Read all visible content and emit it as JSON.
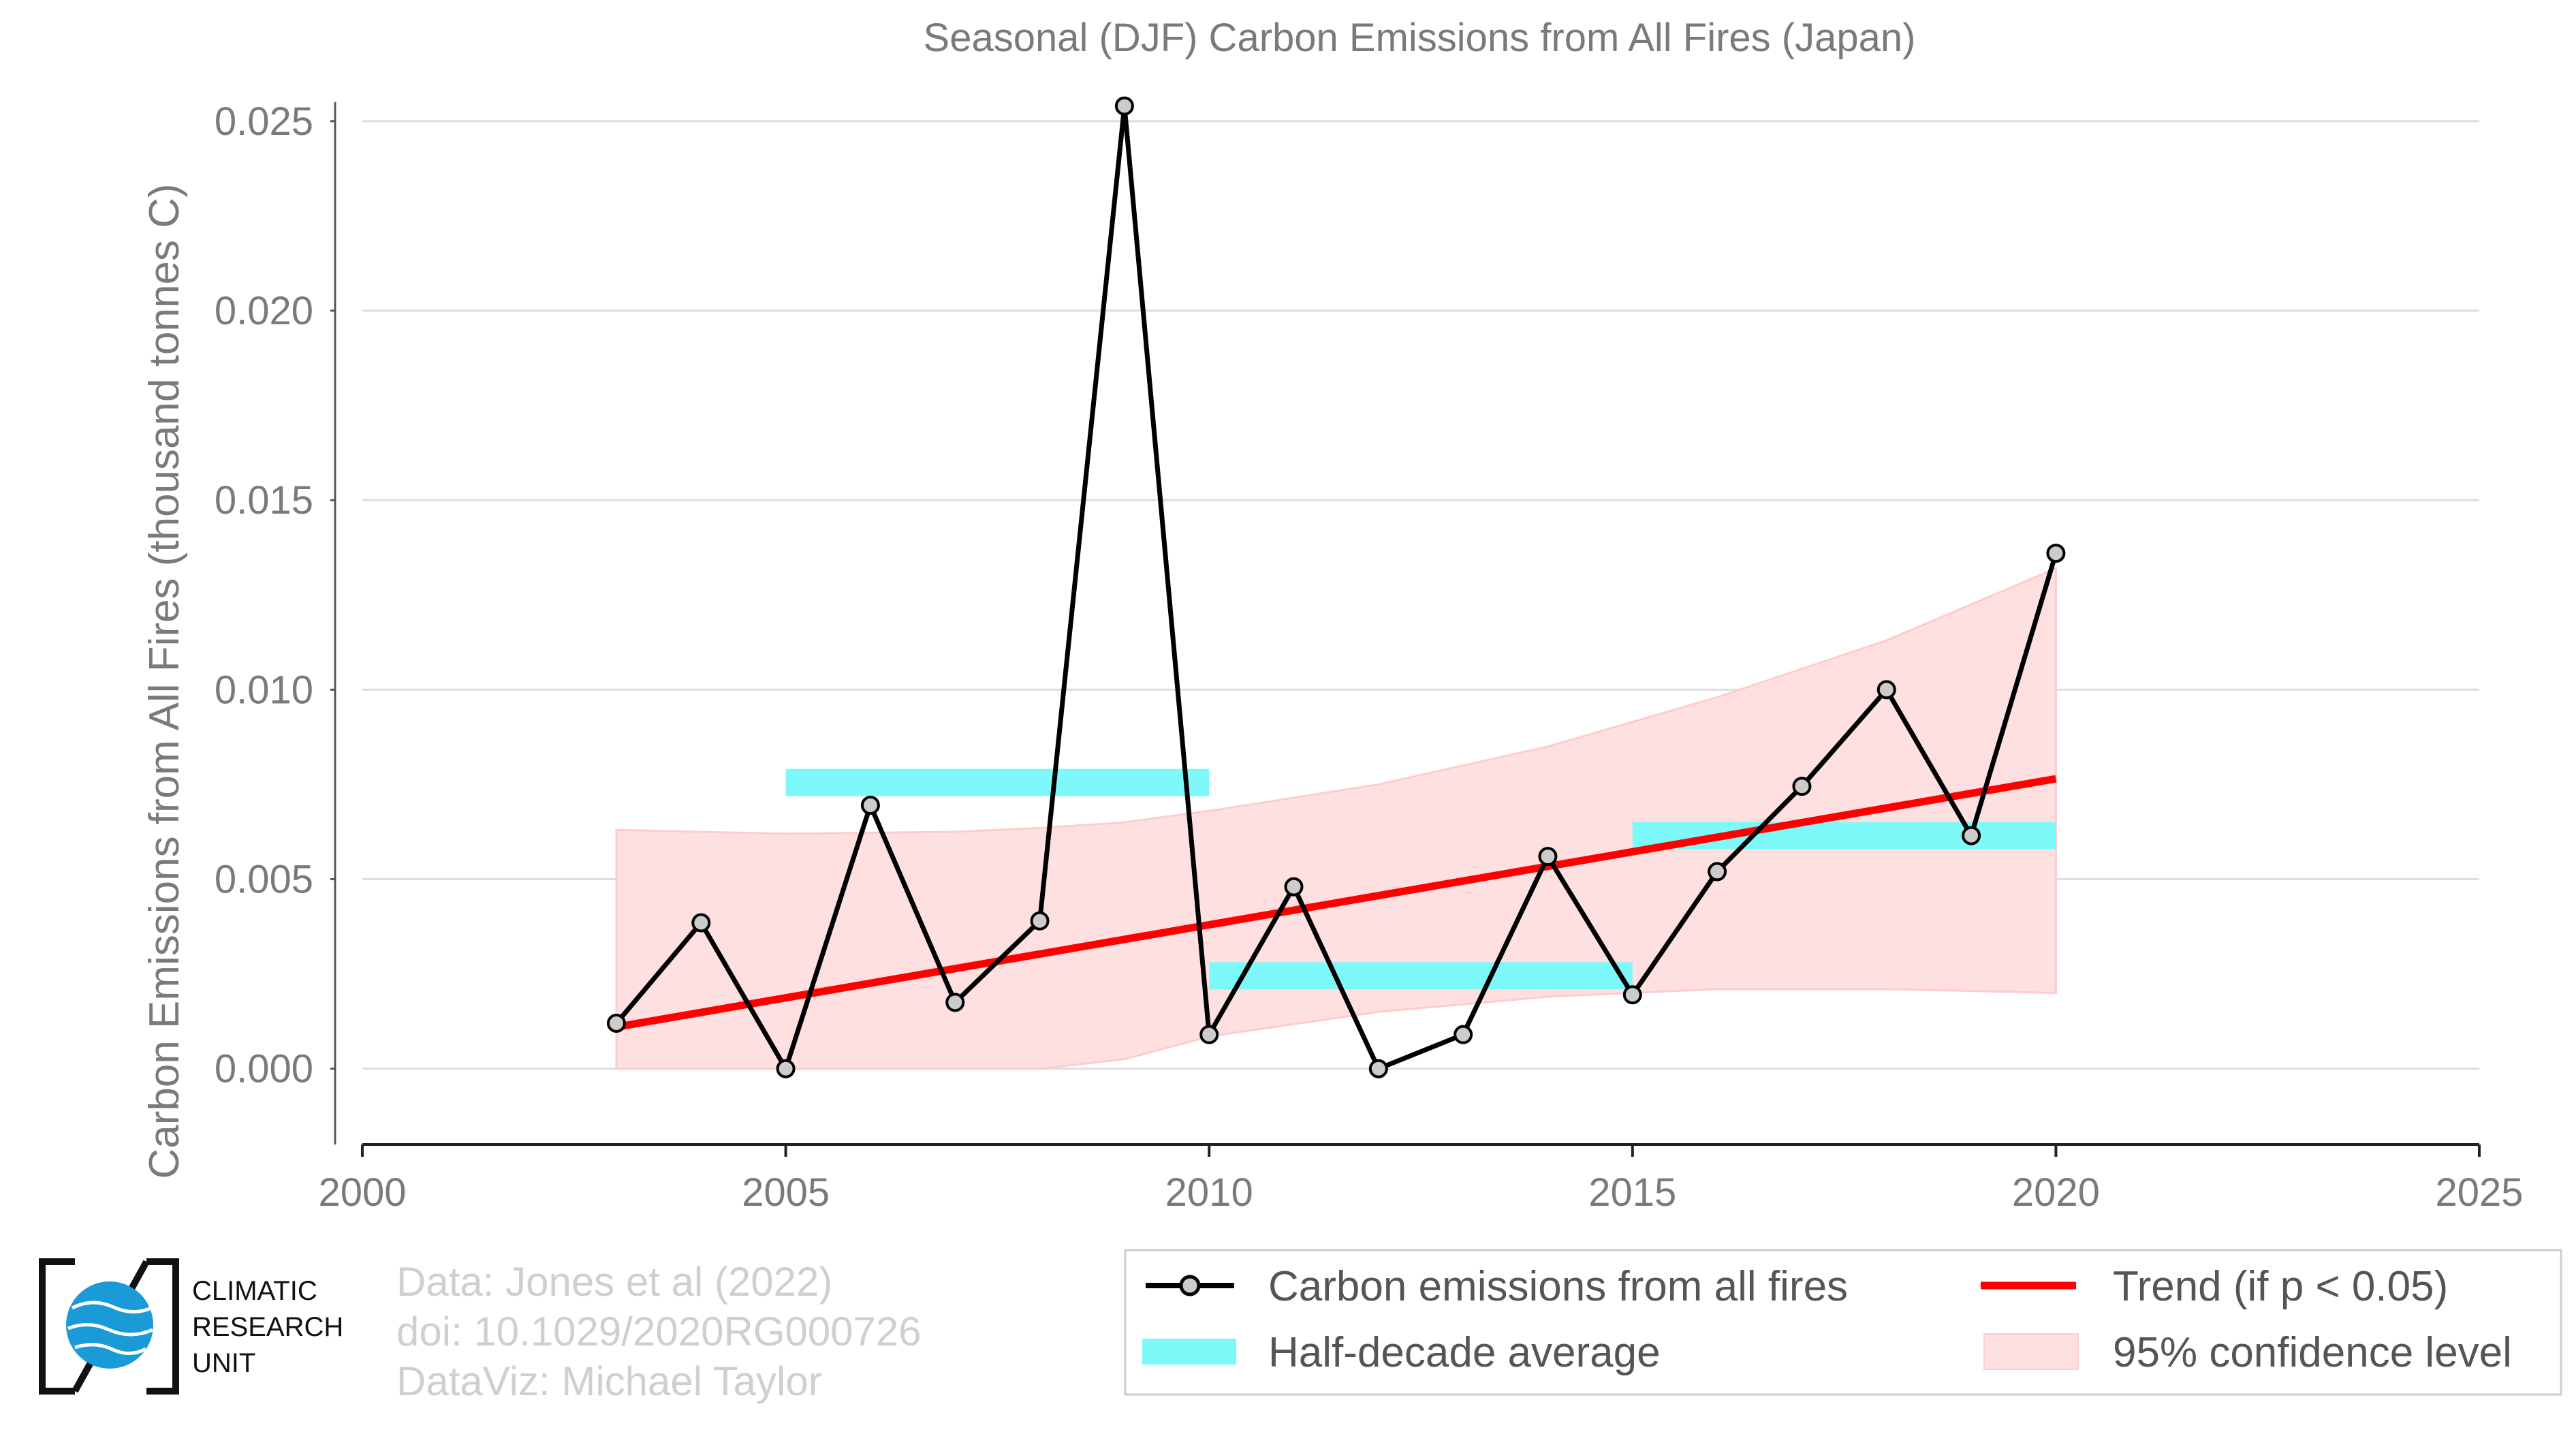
{
  "chart_data": {
    "type": "line",
    "title": "Seasonal (DJF) Carbon Emissions from All Fires (Japan)",
    "xlabel": "",
    "ylabel": "Carbon Emissions from All Fires (thousand tonnes C)",
    "xlim": [
      2000,
      2025
    ],
    "ylim": [
      -0.002,
      0.0255
    ],
    "x_ticks": [
      "2000",
      "2005",
      "2010",
      "2015",
      "2020",
      "2025"
    ],
    "y_ticks": [
      "0.000",
      "0.005",
      "0.010",
      "0.015",
      "0.020",
      "0.025"
    ],
    "grid": "horizontal",
    "series": [
      {
        "name": "Carbon emissions from all fires",
        "color": "#000000",
        "marker_fill": "#cccccc",
        "x": [
          2003,
          2004,
          2005,
          2006,
          2007,
          2008,
          2009,
          2010,
          2011,
          2012,
          2013,
          2014,
          2015,
          2016,
          2017,
          2018,
          2019,
          2020
        ],
        "y": [
          0.0012,
          0.00385,
          0.0,
          0.00695,
          0.00175,
          0.0039,
          0.0254,
          0.0009,
          0.0048,
          0.0,
          0.0009,
          0.0056,
          0.00195,
          0.0052,
          0.00745,
          0.01,
          0.00615,
          0.0136
        ]
      },
      {
        "name": "Half-decade average",
        "color": "#7ef9f9",
        "segments": [
          {
            "x_start": 2005,
            "x_end": 2010,
            "y": 0.00755
          },
          {
            "x_start": 2010,
            "x_end": 2015,
            "y": 0.00245
          },
          {
            "x_start": 2015,
            "x_end": 2020,
            "y": 0.00615
          }
        ]
      },
      {
        "name": "Trend (if p < 0.05)",
        "color": "#ff0000",
        "x": [
          2003,
          2020
        ],
        "y": [
          0.0011,
          0.00765
        ]
      },
      {
        "name": "95% confidence level",
        "color": "#ffcccc",
        "x": [
          2003,
          2005,
          2007,
          2008,
          2009,
          2010,
          2012,
          2014,
          2016,
          2018,
          2020
        ],
        "upper": [
          0.0063,
          0.0062,
          0.00625,
          0.00635,
          0.0065,
          0.0068,
          0.0075,
          0.0085,
          0.0098,
          0.0113,
          0.0132
        ],
        "lower": [
          0.0,
          0.0,
          0.0,
          0.0,
          0.00025,
          0.00085,
          0.0015,
          0.0019,
          0.0021,
          0.0021,
          0.002
        ]
      }
    ],
    "legend": {
      "placement": "bottom-right",
      "items": [
        {
          "label": "Carbon emissions from all fires",
          "kind": "line-marker"
        },
        {
          "label": "Trend (if p < 0.05)",
          "kind": "line-red"
        },
        {
          "label": "Half-decade average",
          "kind": "bar-cyan"
        },
        {
          "label": "95% confidence level",
          "kind": "band-pink"
        }
      ]
    }
  },
  "credits": {
    "line1": "Data: Jones et al (2022)",
    "line2": "doi: 10.1029/2020RG000726",
    "line3": "DataViz: Michael Taylor"
  },
  "logo": {
    "line1": "CLIMATIC",
    "line2": "RESEARCH",
    "line3": "UNIT",
    "icon": "globe-icon",
    "color": "#1a9ad6"
  }
}
